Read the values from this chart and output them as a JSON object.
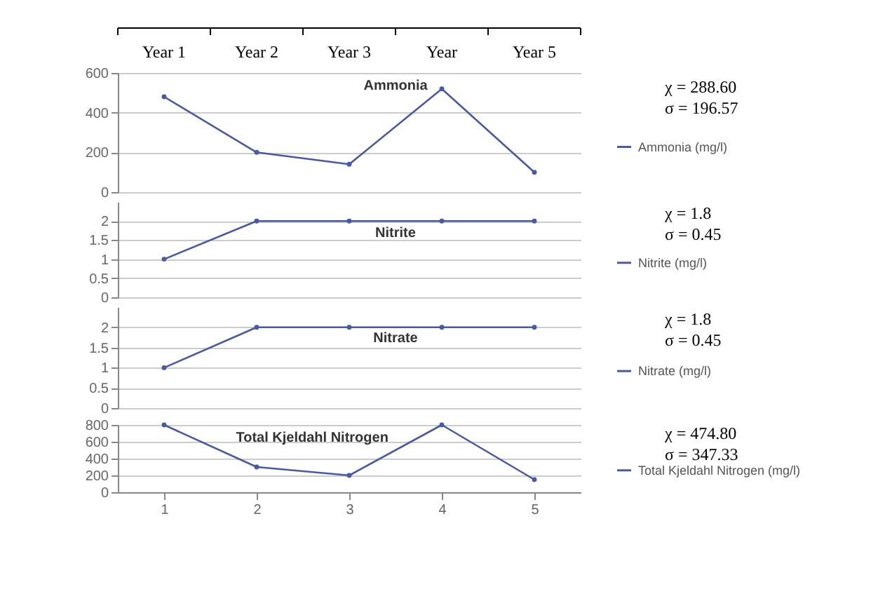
{
  "chart_data": [
    {
      "type": "other",
      "annotations": [
        "Year 1",
        "Year 2",
        "Year 3",
        "Year",
        "Year 5"
      ]
    },
    {
      "type": "line",
      "title": "Ammonia",
      "categories": [
        "1",
        "2",
        "3",
        "4",
        "5"
      ],
      "series": [
        {
          "name": "Ammonia (mg/l)",
          "color": "#4a5a9c",
          "values": [
            480,
            200,
            140,
            520,
            100
          ]
        }
      ],
      "ylim": [
        0,
        600
      ],
      "yticks": [
        0,
        200,
        400,
        600
      ],
      "grid": "y",
      "legend": "right",
      "marker": "circle",
      "tick_labels": "y",
      "annotations": [
        "χ = 288.60",
        "σ = 196.57"
      ]
    },
    {
      "type": "line",
      "title": "Nitrite",
      "categories": [
        "1",
        "2",
        "3",
        "4",
        "5"
      ],
      "series": [
        {
          "name": "Nitrite (mg/l)",
          "color": "#4a5a9c",
          "values": [
            1,
            2,
            2,
            2,
            2
          ]
        }
      ],
      "ylim": [
        0,
        2.5
      ],
      "yticks": [
        0,
        0.5,
        1,
        1.5,
        2
      ],
      "grid": "y",
      "legend": "right",
      "marker": "circle",
      "tick_labels": "y",
      "annotations": [
        "χ = 1.8",
        "σ = 0.45"
      ]
    },
    {
      "type": "line",
      "title": "Nitrate",
      "categories": [
        "1",
        "2",
        "3",
        "4",
        "5"
      ],
      "series": [
        {
          "name": "Nitrate (mg/l)",
          "color": "#4a5a9c",
          "values": [
            1,
            2,
            2,
            2,
            2
          ]
        }
      ],
      "ylim": [
        0,
        2.5
      ],
      "yticks": [
        0,
        0.5,
        1,
        1.5,
        2
      ],
      "grid": "y",
      "legend": "right",
      "marker": "circle",
      "tick_labels": "y",
      "annotations": [
        "χ = 1.8",
        "σ = 0.45"
      ]
    },
    {
      "type": "line",
      "title": "Total Kjeldahl Nitrogen",
      "categories": [
        "1",
        "2",
        "3",
        "4",
        "5"
      ],
      "series": [
        {
          "name": "Total Kjeldahl Nitrogen (mg/l)",
          "color": "#4a5a9c",
          "values": [
            800,
            300,
            200,
            800,
            150
          ]
        }
      ],
      "ylim": [
        0,
        800
      ],
      "yticks": [
        0,
        200,
        400,
        600,
        800
      ],
      "grid": "y",
      "legend": "right",
      "marker": "circle",
      "annotations": [
        "χ = 474.80",
        "σ = 347.33"
      ]
    }
  ]
}
